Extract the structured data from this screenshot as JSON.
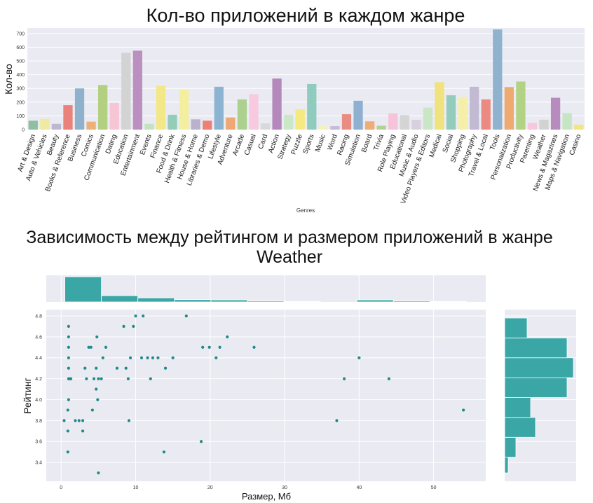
{
  "chart_data": [
    {
      "type": "bar",
      "title": "Кол-во приложений в каждом жанре",
      "xlabel": "Genres",
      "ylabel": "Кол-во",
      "ylim": [
        0,
        740
      ],
      "yticks": [
        0,
        100,
        200,
        300,
        400,
        500,
        600,
        700
      ],
      "grid": true,
      "categories": [
        "Art & Design",
        "Auto & Vehicles",
        "Beauty",
        "Books & Reference",
        "Business",
        "Comics",
        "Communication",
        "Dating",
        "Education",
        "Entertainment",
        "Events",
        "Finance",
        "Food & Drink",
        "Health & Fitness",
        "House & Home",
        "Libraries & Demo",
        "Lifestyle",
        "Adventure",
        "Arcade",
        "Casual",
        "Card",
        "Action",
        "Strategy",
        "Puzzle",
        "Sports",
        "Music",
        "Word",
        "Racing",
        "Simulation",
        "Board",
        "Trivia",
        "Role Playing",
        "Educational",
        "Music & Audio",
        "Video Players & Editors",
        "Medical",
        "Social",
        "Shopping",
        "Photography",
        "Travel & Local",
        "Tools",
        "Personalization",
        "Productivity",
        "Parenting",
        "Weather",
        "News & Magazines",
        "Maps & Navigation",
        "Casino"
      ],
      "values": [
        65,
        78,
        42,
        178,
        300,
        58,
        325,
        195,
        560,
        575,
        42,
        320,
        108,
        295,
        75,
        65,
        312,
        88,
        220,
        258,
        45,
        372,
        108,
        148,
        332,
        25,
        25,
        112,
        210,
        60,
        28,
        118,
        105,
        70,
        160,
        345,
        250,
        238,
        312,
        220,
        730,
        310,
        350,
        48,
        72,
        232,
        120,
        35
      ],
      "colors": [
        "#8fbea1",
        "#f0eaa0",
        "#bfb6d2",
        "#e8827a",
        "#8fb2cc",
        "#eeb079",
        "#b3cf80",
        "#f7c6d5",
        "#d3d3d3",
        "#bb8fc0",
        "#c2e3c0",
        "#f3e887",
        "#93cdb9",
        "#f3ef9f",
        "#bab2cd",
        "#ec8077",
        "#8cb3d1",
        "#eda874",
        "#acd18e",
        "#f9cadf",
        "#d9d9d9",
        "#b488bb",
        "#cae8c8",
        "#f5e97f",
        "#8fccbe",
        "#f4f2b6",
        "#c3bbd8",
        "#e98c82",
        "#90b0d2",
        "#efac76",
        "#b3d28c",
        "#f6c3d9",
        "#d4d4d4",
        "#d8cfdf",
        "#c9e6c5",
        "#f0e27c",
        "#93ccbc",
        "#f6efaa",
        "#c1bad2",
        "#ea8a80",
        "#8fb2cf",
        "#eeaa70",
        "#b2d384",
        "#f8c7dd",
        "#d2d2d2",
        "#b78bbe",
        "#c6e5c3",
        "#f1e67f"
      ]
    },
    {
      "type": "scatter",
      "title_line1": "Зависимость между рейтингом и размером приложений в жанре",
      "title_line2": "Weather",
      "xlabel": "Размер, Мб",
      "ylabel": "Рейтинг",
      "xlim": [
        -2,
        57
      ],
      "ylim": [
        3.22,
        4.86
      ],
      "xticks": [
        0,
        10,
        20,
        30,
        40,
        50
      ],
      "yticks": [
        "3.4",
        "3.6",
        "3.8",
        "4.0",
        "4.2",
        "4.4",
        "4.6",
        "4.8"
      ],
      "color": "#1f8a8a",
      "grid": true,
      "points": [
        [
          0.4,
          3.8
        ],
        [
          0.9,
          3.5
        ],
        [
          0.9,
          3.7
        ],
        [
          0.9,
          3.9
        ],
        [
          1.0,
          4.0
        ],
        [
          1.0,
          4.2
        ],
        [
          1.0,
          4.3
        ],
        [
          1.0,
          4.4
        ],
        [
          1.0,
          4.5
        ],
        [
          1.0,
          4.6
        ],
        [
          1.0,
          4.7
        ],
        [
          1.2,
          4.2
        ],
        [
          1.3,
          4.2
        ],
        [
          1.9,
          3.8
        ],
        [
          2.4,
          3.8
        ],
        [
          2.9,
          3.7
        ],
        [
          2.9,
          3.8
        ],
        [
          3.2,
          4.3
        ],
        [
          3.4,
          4.2
        ],
        [
          3.7,
          4.5
        ],
        [
          4.0,
          4.5
        ],
        [
          4.2,
          3.9
        ],
        [
          4.4,
          4.2
        ],
        [
          4.7,
          4.1
        ],
        [
          4.7,
          4.3
        ],
        [
          4.8,
          4.6
        ],
        [
          4.9,
          4.0
        ],
        [
          5.0,
          4.2
        ],
        [
          5.0,
          3.3
        ],
        [
          5.4,
          4.2
        ],
        [
          5.6,
          4.4
        ],
        [
          6.0,
          4.5
        ],
        [
          7.5,
          4.3
        ],
        [
          8.4,
          4.7
        ],
        [
          8.7,
          4.3
        ],
        [
          9.0,
          4.2
        ],
        [
          9.1,
          3.8
        ],
        [
          9.3,
          4.4
        ],
        [
          9.7,
          4.7
        ],
        [
          10.0,
          4.8
        ],
        [
          10.8,
          4.4
        ],
        [
          11.0,
          4.8
        ],
        [
          11.6,
          4.4
        ],
        [
          12.0,
          4.2
        ],
        [
          12.3,
          4.4
        ],
        [
          13.0,
          4.4
        ],
        [
          13.8,
          3.5
        ],
        [
          14.0,
          4.3
        ],
        [
          15.0,
          4.4
        ],
        [
          16.8,
          4.8
        ],
        [
          18.8,
          3.6
        ],
        [
          19.0,
          4.5
        ],
        [
          19.9,
          4.5
        ],
        [
          20.8,
          4.4
        ],
        [
          21.3,
          4.5
        ],
        [
          22.3,
          4.6
        ],
        [
          25.9,
          4.5
        ],
        [
          37.0,
          3.8
        ],
        [
          38.0,
          4.2
        ],
        [
          40.0,
          4.4
        ],
        [
          44.0,
          4.2
        ],
        [
          54.0,
          3.9
        ]
      ],
      "marginal_x": {
        "bins": [
          [
            0.5,
            5.4,
            1.0
          ],
          [
            5.4,
            10.3,
            0.25
          ],
          [
            10.3,
            15.2,
            0.16
          ],
          [
            15.2,
            20.1,
            0.09
          ],
          [
            20.1,
            25.0,
            0.08
          ],
          [
            25.0,
            29.9,
            0.04
          ],
          [
            29.9,
            34.8,
            0.02
          ],
          [
            34.8,
            39.7,
            0.0
          ],
          [
            39.7,
            44.6,
            0.08
          ],
          [
            44.6,
            49.5,
            0.04
          ],
          [
            49.5,
            54.4,
            0.02
          ]
        ]
      },
      "marginal_y": {
        "bins": [
          [
            3.3,
            3.45,
            0.05
          ],
          [
            3.45,
            3.64,
            0.16
          ],
          [
            3.64,
            3.83,
            0.44
          ],
          [
            3.83,
            4.02,
            0.37
          ],
          [
            4.02,
            4.21,
            0.89
          ],
          [
            4.21,
            4.4,
            0.98
          ],
          [
            4.4,
            4.59,
            0.89
          ],
          [
            4.59,
            4.78,
            0.32
          ]
        ]
      }
    }
  ]
}
